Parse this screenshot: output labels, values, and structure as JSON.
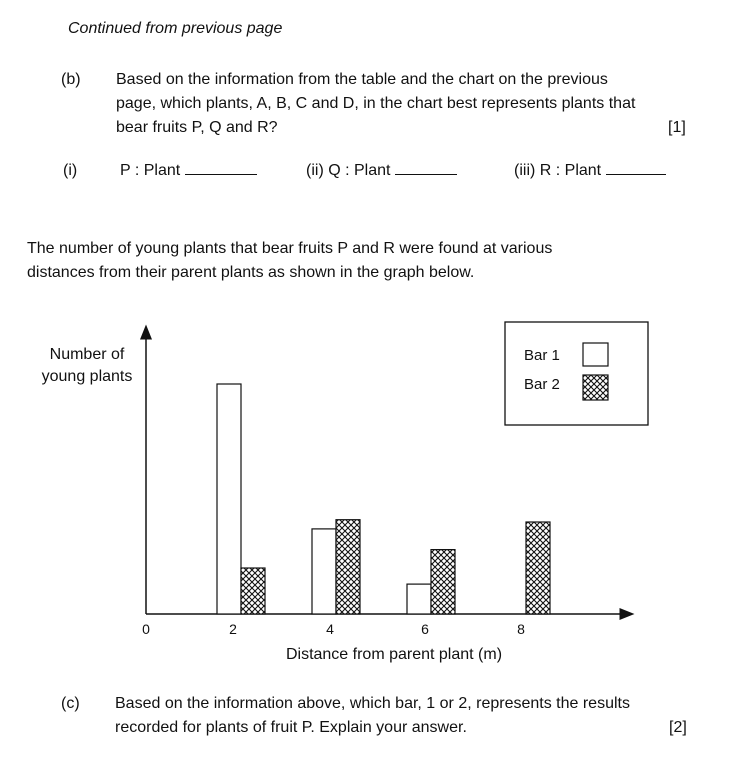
{
  "header": {
    "continued": "Continued from previous page"
  },
  "part_b": {
    "label": "(b)",
    "lines": [
      "Based on the information from the table and the chart on the previous",
      "page, which plants, A, B, C and D, in the chart best represents plants that",
      "bear fruits P, Q and R?"
    ],
    "marks": "[1]",
    "answers": [
      {
        "label": "(i)",
        "text": "P  :  Plant"
      },
      {
        "label": "",
        "text": "(ii) Q  :  Plant"
      },
      {
        "label": "",
        "text": "(iii) R  :  Plant"
      }
    ]
  },
  "intro": {
    "lines": [
      "The number of young plants that bear fruits P and R were found at various",
      "distances from their parent plants as shown in the graph below."
    ]
  },
  "chart_data": {
    "type": "bar",
    "ylabel": [
      "Number of",
      "young plants"
    ],
    "xlabel": "Distance from parent plant (m)",
    "x_ticks": [
      "0",
      "2",
      "4",
      "6",
      "8"
    ],
    "categories": [
      "2",
      "4",
      "6",
      "8"
    ],
    "y_ticks_shown": false,
    "grid": false,
    "legend_position": "top-right",
    "series": [
      {
        "name": "Bar 1",
        "pattern": "empty",
        "values": [
          100,
          37,
          13,
          0
        ]
      },
      {
        "name": "Bar 2",
        "pattern": "cross-hatch",
        "values": [
          20,
          41,
          28,
          40
        ]
      }
    ]
  },
  "part_c": {
    "label": "(c)",
    "lines": [
      "Based on the information above, which bar, 1 or 2,  represents the results",
      "recorded for plants of fruit P. Explain your answer."
    ],
    "marks": "[2]"
  }
}
